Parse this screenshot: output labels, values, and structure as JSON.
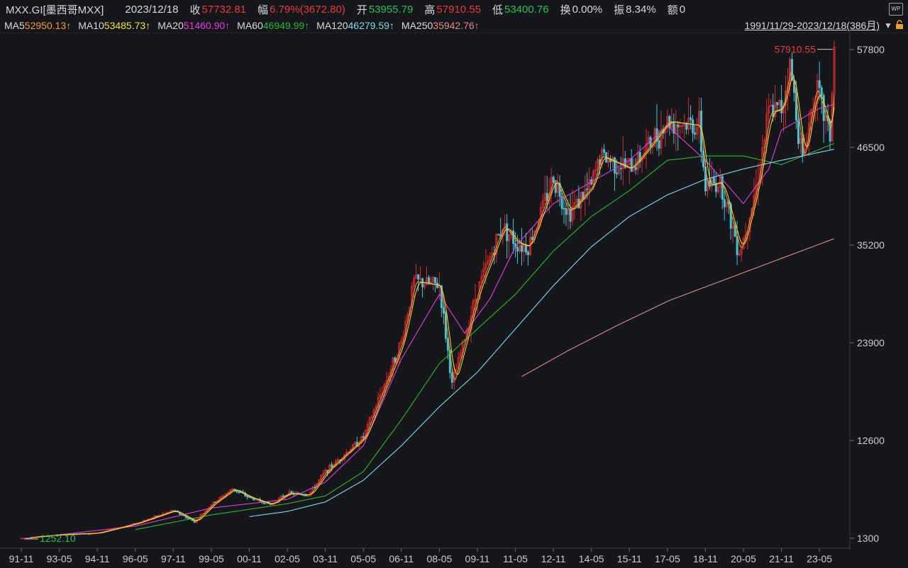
{
  "header": {
    "symbol": "MXX.GI[墨西哥MXX]",
    "date": "2023/12/18",
    "close_label": "收",
    "close": "57732.81",
    "change_label": "幅",
    "change": "6.79%(3672.80)",
    "open_label": "开",
    "open": "53955.79",
    "high_label": "高",
    "high": "57910.55",
    "low_label": "低",
    "low": "53400.76",
    "turnover_label": "换",
    "turnover": "0.00%",
    "amplitude_label": "振",
    "amplitude": "8.34%",
    "amount_label": "额",
    "amount": "0"
  },
  "ma_legend": [
    {
      "name": "MA5",
      "value": "52950.13↑",
      "color": "#f29a2e"
    },
    {
      "name": "MA10",
      "value": "53485.73↑",
      "color": "#f2e12e"
    },
    {
      "name": "MA20",
      "value": "51460.90↑",
      "color": "#e23be0"
    },
    {
      "name": "MA60",
      "value": "46949.99↑",
      "color": "#28b82f"
    },
    {
      "name": "MA120",
      "value": "46279.59↑",
      "color": "#7fd8ec"
    },
    {
      "name": "MA250",
      "value": "35942.76↑",
      "color": "#e08a8a"
    }
  ],
  "range_label": "1991/11/29-2023/12/18(386月)",
  "icons": [
    "wp-icon",
    "lock-icon",
    "dropdown-icon"
  ],
  "chart_data": {
    "type": "candlestick",
    "period": "monthly",
    "y_ticks": [
      57800,
      46500,
      35200,
      23900,
      12600,
      1300
    ],
    "ylim": [
      1300,
      57800
    ],
    "x_ticks": [
      "91-11",
      "93-05",
      "94-11",
      "96-05",
      "97-11",
      "99-05",
      "00-11",
      "02-05",
      "03-11",
      "05-05",
      "06-11",
      "08-05",
      "09-11",
      "11-05",
      "12-11",
      "14-05",
      "15-11",
      "17-05",
      "18-11",
      "20-05",
      "21-11",
      "23-05"
    ],
    "max_annotation": "57910.55",
    "min_annotation": "1252.10",
    "price": [
      [
        "1991-11",
        1300
      ],
      [
        "1993-05",
        1700
      ],
      [
        "1994-11",
        1900
      ],
      [
        "1996-05",
        3000
      ],
      [
        "1997-11",
        4500
      ],
      [
        "1998-09",
        3200
      ],
      [
        "1999-05",
        5200
      ],
      [
        "2000-03",
        7000
      ],
      [
        "2000-11",
        6000
      ],
      [
        "2001-09",
        5200
      ],
      [
        "2002-05",
        6500
      ],
      [
        "2003-03",
        6300
      ],
      [
        "2003-11",
        9000
      ],
      [
        "2005-05",
        13000
      ],
      [
        "2006-11",
        24000
      ],
      [
        "2007-05",
        31000
      ],
      [
        "2008-05",
        30500
      ],
      [
        "2008-11",
        19000
      ],
      [
        "2009-11",
        30000
      ],
      [
        "2010-11",
        37500
      ],
      [
        "2011-05",
        35500
      ],
      [
        "2011-11",
        35000
      ],
      [
        "2012-11",
        43000
      ],
      [
        "2013-06",
        39000
      ],
      [
        "2014-05",
        42000
      ],
      [
        "2014-09",
        45500
      ],
      [
        "2015-11",
        44000
      ],
      [
        "2016-06",
        46000
      ],
      [
        "2017-05",
        49500
      ],
      [
        "2018-08",
        49000
      ],
      [
        "2018-11",
        42000
      ],
      [
        "2019-06",
        42500
      ],
      [
        "2020-03",
        34500
      ],
      [
        "2020-05",
        36000
      ],
      [
        "2020-11",
        42000
      ],
      [
        "2021-05",
        50500
      ],
      [
        "2021-11",
        51000
      ],
      [
        "2022-03",
        56000
      ],
      [
        "2022-09",
        45000
      ],
      [
        "2023-03",
        53500
      ],
      [
        "2023-10",
        48000
      ],
      [
        "2023-12",
        57732
      ]
    ],
    "ma": {
      "MA20": [
        [
          "1992-06",
          1400
        ],
        [
          "1996-05",
          2700
        ],
        [
          "1999-05",
          4800
        ],
        [
          "2002-05",
          5800
        ],
        [
          "2003-11",
          7800
        ],
        [
          "2005-05",
          12000
        ],
        [
          "2006-11",
          22000
        ],
        [
          "2008-05",
          29500
        ],
        [
          "2009-05",
          25000
        ],
        [
          "2010-05",
          29000
        ],
        [
          "2011-05",
          35000
        ],
        [
          "2012-11",
          40000
        ],
        [
          "2014-05",
          42500
        ],
        [
          "2015-11",
          45000
        ],
        [
          "2017-05",
          49000
        ],
        [
          "2018-11",
          45000
        ],
        [
          "2020-05",
          40000
        ],
        [
          "2021-05",
          44000
        ],
        [
          "2021-11",
          48500
        ],
        [
          "2023-05",
          51000
        ],
        [
          "2023-12",
          51460
        ]
      ],
      "MA60": [
        [
          "1996-05",
          2300
        ],
        [
          "1999-05",
          4000
        ],
        [
          "2002-05",
          5300
        ],
        [
          "2003-11",
          6200
        ],
        [
          "2005-05",
          9000
        ],
        [
          "2006-11",
          15000
        ],
        [
          "2008-05",
          21500
        ],
        [
          "2009-11",
          25500
        ],
        [
          "2011-05",
          29500
        ],
        [
          "2012-11",
          34500
        ],
        [
          "2014-05",
          38500
        ],
        [
          "2015-11",
          41500
        ],
        [
          "2017-05",
          45000
        ],
        [
          "2018-11",
          45500
        ],
        [
          "2020-05",
          45500
        ],
        [
          "2021-11",
          44500
        ],
        [
          "2023-12",
          46950
        ]
      ],
      "MA120": [
        [
          "2000-11",
          3800
        ],
        [
          "2002-05",
          4400
        ],
        [
          "2003-11",
          5500
        ],
        [
          "2005-05",
          8000
        ],
        [
          "2006-11",
          12000
        ],
        [
          "2008-05",
          16500
        ],
        [
          "2009-11",
          20500
        ],
        [
          "2011-05",
          25500
        ],
        [
          "2012-11",
          30500
        ],
        [
          "2014-05",
          35000
        ],
        [
          "2015-11",
          38500
        ],
        [
          "2017-05",
          41000
        ],
        [
          "2018-11",
          42800
        ],
        [
          "2020-05",
          44000
        ],
        [
          "2021-11",
          45000
        ],
        [
          "2023-12",
          46280
        ]
      ],
      "MA250": [
        [
          "2011-08",
          20000
        ],
        [
          "2013-06",
          23000
        ],
        [
          "2015-06",
          26000
        ],
        [
          "2017-06",
          28800
        ],
        [
          "2019-06",
          31000
        ],
        [
          "2021-06",
          33200
        ],
        [
          "2023-12",
          35943
        ]
      ]
    }
  }
}
